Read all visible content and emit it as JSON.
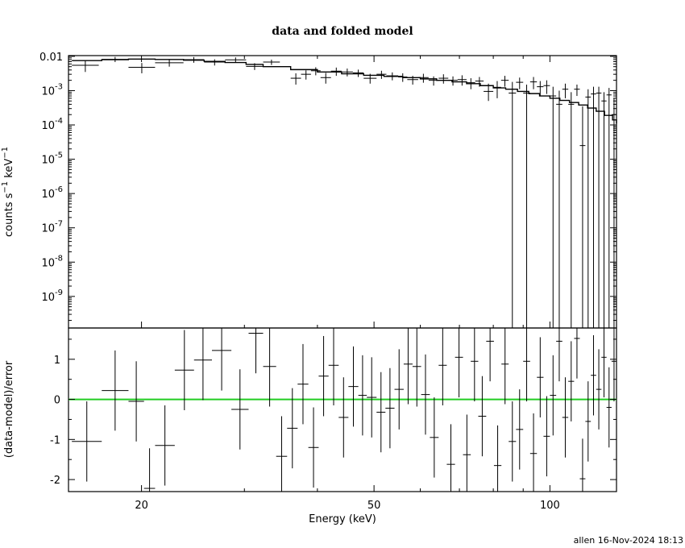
{
  "chart_data": {
    "type": "scatter",
    "title": "data and folded model",
    "xlabel": "Energy (keV)",
    "xscale": "log",
    "xlim": [
      15,
      130
    ],
    "xticks": [
      {
        "value": 20,
        "label": "20"
      },
      {
        "value": 50,
        "label": "50"
      },
      {
        "value": 100,
        "label": "100"
      }
    ],
    "footer": "allen 16-Nov-2024 18:13",
    "top": {
      "ylabel": "counts s-1 keV-1",
      "yscale": "log",
      "ylim": [
        1.2e-10,
        0.0105
      ],
      "yticks": [
        {
          "value": 0.01,
          "label": "0.01"
        },
        {
          "value": 0.001,
          "mant": "10",
          "exp": "-3"
        },
        {
          "value": 0.0001,
          "mant": "10",
          "exp": "-4"
        },
        {
          "value": 1e-05,
          "mant": "10",
          "exp": "-5"
        },
        {
          "value": 1e-06,
          "mant": "10",
          "exp": "-6"
        },
        {
          "value": 1e-07,
          "mant": "10",
          "exp": "-7"
        },
        {
          "value": 1e-08,
          "mant": "10",
          "exp": "-8"
        },
        {
          "value": 1e-09,
          "mant": "10",
          "exp": "-9"
        }
      ],
      "data": [
        [
          15.2,
          16.9,
          0.0055,
          0.0035,
          0.0075
        ],
        [
          17.1,
          19.0,
          0.0082,
          0.0068,
          0.0096
        ],
        [
          19.0,
          21.1,
          0.0048,
          0.0032,
          0.0064
        ],
        [
          21.1,
          23.6,
          0.0065,
          0.005,
          0.008
        ],
        [
          23.6,
          25.6,
          0.008,
          0.0065,
          0.0095
        ],
        [
          25.6,
          27.8,
          0.0068,
          0.0054,
          0.0082
        ],
        [
          27.8,
          30.2,
          0.0079,
          0.0065,
          0.0093
        ],
        [
          30.2,
          32.3,
          0.0051,
          0.004,
          0.0063
        ],
        [
          32.3,
          34.5,
          0.0068,
          0.0056,
          0.008
        ],
        [
          36.0,
          37.5,
          0.0023,
          0.0015,
          0.0032
        ],
        [
          37.5,
          39.0,
          0.003,
          0.0021,
          0.0039
        ],
        [
          39.0,
          40.5,
          0.0038,
          0.0028,
          0.0048
        ],
        [
          40.5,
          42.2,
          0.0024,
          0.0016,
          0.0033
        ],
        [
          42.2,
          44.0,
          0.0037,
          0.0027,
          0.0047
        ],
        [
          44.0,
          46.0,
          0.0035,
          0.0026,
          0.0044
        ],
        [
          46.0,
          48.0,
          0.0033,
          0.0025,
          0.0041
        ],
        [
          48.0,
          50.5,
          0.0023,
          0.0016,
          0.0031
        ],
        [
          50.5,
          52.5,
          0.003,
          0.0022,
          0.0038
        ],
        [
          52.5,
          55.0,
          0.0027,
          0.002,
          0.0034
        ],
        [
          55.0,
          57.0,
          0.0025,
          0.0018,
          0.0032
        ],
        [
          57.0,
          59.5,
          0.0021,
          0.0015,
          0.0027
        ],
        [
          59.5,
          62.0,
          0.0024,
          0.0017,
          0.0031
        ],
        [
          62.0,
          64.5,
          0.002,
          0.0014,
          0.0026
        ],
        [
          64.5,
          67.0,
          0.0023,
          0.0016,
          0.003
        ],
        [
          67.0,
          69.5,
          0.002,
          0.0014,
          0.0026
        ],
        [
          69.5,
          72.0,
          0.0021,
          0.0014,
          0.0028
        ],
        [
          72.0,
          74.5,
          0.0017,
          0.0011,
          0.0023
        ],
        [
          74.5,
          77.0,
          0.0019,
          0.0013,
          0.0025
        ],
        [
          77.0,
          80.0,
          0.00095,
          0.0005,
          0.0016
        ],
        [
          80.0,
          82.5,
          0.00125,
          0.0006,
          0.0019
        ],
        [
          82.5,
          85.0,
          0.002,
          0.0013,
          0.0027
        ],
        [
          85.0,
          87.5,
          0.00085,
          1e-12,
          0.0018
        ],
        [
          87.5,
          90.0,
          0.00175,
          0.0011,
          0.0024
        ],
        [
          90.0,
          92.5,
          0.00085,
          1e-12,
          0.0015
        ],
        [
          92.5,
          95.0,
          0.0018,
          0.0011,
          0.0025
        ],
        [
          95.0,
          97.5,
          0.0013,
          0.0007,
          0.0019
        ],
        [
          97.5,
          100.0,
          0.0014,
          0.0008,
          0.002
        ],
        [
          100.0,
          102.5,
          0.0007,
          1e-12,
          0.0013
        ],
        [
          102.5,
          105.0,
          0.0004,
          1e-12,
          0.001
        ],
        [
          105.0,
          107.5,
          0.0011,
          0.0006,
          0.0016
        ],
        [
          107.5,
          110.0,
          0.0004,
          1e-12,
          0.0009
        ],
        [
          110.0,
          112.5,
          0.0011,
          0.0007,
          0.0015
        ],
        [
          112.5,
          115.0,
          2.5e-05,
          1e-12,
          0.00035
        ],
        [
          115.0,
          117.5,
          0.00065,
          1e-12,
          0.0011
        ],
        [
          117.5,
          120.0,
          0.0008,
          1e-12,
          0.0013
        ],
        [
          120.0,
          122.5,
          0.00085,
          1e-12,
          0.0013
        ],
        [
          122.5,
          125.0,
          0.0005,
          1e-12,
          0.0009
        ],
        [
          125.0,
          127.5,
          0.00075,
          1e-12,
          0.0012
        ],
        [
          127.5,
          130.0,
          0.0002,
          1e-12,
          0.0006
        ]
      ],
      "model": [
        [
          15.2,
          0.0075
        ],
        [
          17.1,
          0.008
        ],
        [
          19.0,
          0.0083
        ],
        [
          21.1,
          0.0081
        ],
        [
          23.6,
          0.0077
        ],
        [
          25.6,
          0.0071
        ],
        [
          27.8,
          0.0066
        ],
        [
          30.2,
          0.0058
        ],
        [
          32.3,
          0.005
        ],
        [
          36.0,
          0.0041
        ],
        [
          40.0,
          0.0035
        ],
        [
          44.0,
          0.0031
        ],
        [
          48.0,
          0.0028
        ],
        [
          52.0,
          0.0026
        ],
        [
          56.0,
          0.0024
        ],
        [
          60.0,
          0.0022
        ],
        [
          64.0,
          0.002
        ],
        [
          68.0,
          0.0018
        ],
        [
          72.0,
          0.0016
        ],
        [
          76.0,
          0.0014
        ],
        [
          80.0,
          0.0012
        ],
        [
          84.0,
          0.0011
        ],
        [
          88.0,
          0.00095
        ],
        [
          92.0,
          0.00082
        ],
        [
          96.0,
          0.0007
        ],
        [
          100.0,
          0.0006
        ],
        [
          104.0,
          0.00052
        ],
        [
          108.0,
          0.00045
        ],
        [
          112.0,
          0.00038
        ],
        [
          116.0,
          0.00031
        ],
        [
          120.0,
          0.00025
        ],
        [
          124.0,
          0.00019
        ],
        [
          128.0,
          0.00014
        ],
        [
          130.0,
          0.00011
        ]
      ]
    },
    "bottom": {
      "ylabel": "(data-model)/error",
      "ylim": [
        -2.3,
        1.78
      ],
      "yticks": [
        {
          "value": 1,
          "label": "1"
        },
        {
          "value": 0,
          "label": "0"
        },
        {
          "value": -1,
          "label": "-1"
        },
        {
          "value": -2,
          "label": "-2"
        }
      ],
      "zero_line_color": "#22cc22",
      "data": [
        [
          15.2,
          17.1,
          -1.05,
          -2.05,
          -0.05
        ],
        [
          17.1,
          19.0,
          0.22,
          -0.78,
          1.22
        ],
        [
          19.0,
          20.2,
          -0.05,
          -1.05,
          0.95
        ],
        [
          20.2,
          21.1,
          -2.22,
          -3.22,
          -1.22
        ],
        [
          21.1,
          22.8,
          -1.15,
          -2.15,
          -0.15
        ],
        [
          22.8,
          24.6,
          0.73,
          -0.27,
          1.73
        ],
        [
          24.6,
          26.4,
          0.98,
          -0.02,
          1.98
        ],
        [
          26.4,
          28.5,
          1.22,
          0.22,
          2.22
        ],
        [
          28.5,
          30.5,
          -0.25,
          -1.25,
          0.75
        ],
        [
          30.5,
          32.3,
          1.65,
          0.65,
          2.65
        ],
        [
          32.3,
          34.0,
          0.82,
          -0.18,
          1.82
        ],
        [
          34.0,
          35.5,
          -1.42,
          -2.42,
          -0.42
        ],
        [
          35.5,
          37.0,
          -0.72,
          -1.72,
          0.28
        ],
        [
          37.0,
          38.6,
          0.38,
          -0.62,
          1.38
        ],
        [
          38.6,
          40.2,
          -1.2,
          -2.2,
          -0.2
        ],
        [
          40.2,
          41.8,
          0.58,
          -0.42,
          1.58
        ],
        [
          41.8,
          43.5,
          0.85,
          -0.15,
          1.85
        ],
        [
          43.5,
          45.2,
          -0.45,
          -1.45,
          0.55
        ],
        [
          45.2,
          47.0,
          0.32,
          -0.68,
          1.32
        ],
        [
          47.0,
          48.6,
          0.1,
          -0.9,
          1.1
        ],
        [
          48.6,
          50.5,
          0.05,
          -0.95,
          1.05
        ],
        [
          50.5,
          52.3,
          -0.32,
          -1.32,
          0.68
        ],
        [
          52.3,
          54.2,
          -0.22,
          -1.22,
          0.78
        ],
        [
          54.2,
          56.2,
          0.25,
          -0.75,
          1.25
        ],
        [
          56.2,
          58.2,
          0.88,
          -0.12,
          1.88
        ],
        [
          58.2,
          60.2,
          0.82,
          -0.18,
          1.82
        ],
        [
          60.2,
          62.3,
          0.12,
          -0.88,
          1.12
        ],
        [
          62.3,
          64.5,
          -0.95,
          -1.95,
          0.05
        ],
        [
          64.5,
          66.6,
          0.85,
          -0.15,
          1.85
        ],
        [
          66.6,
          68.8,
          -1.62,
          -2.62,
          -0.62
        ],
        [
          68.8,
          71.0,
          1.05,
          0.05,
          2.05
        ],
        [
          71.0,
          73.2,
          -1.38,
          -2.38,
          -0.38
        ],
        [
          73.2,
          75.4,
          0.95,
          -0.05,
          1.95
        ],
        [
          75.4,
          77.8,
          -0.42,
          -1.42,
          0.58
        ],
        [
          77.8,
          80.2,
          1.45,
          0.45,
          2.45
        ],
        [
          80.2,
          82.6,
          -1.65,
          -2.65,
          -0.65
        ],
        [
          82.6,
          85.0,
          0.88,
          -0.12,
          1.88
        ],
        [
          85.0,
          87.5,
          -1.05,
          -2.05,
          -0.05
        ],
        [
          87.5,
          90.0,
          -0.75,
          -1.75,
          0.25
        ],
        [
          90.0,
          92.5,
          0.95,
          -0.05,
          1.95
        ],
        [
          92.5,
          95.0,
          -1.35,
          -2.35,
          -0.35
        ],
        [
          95.0,
          97.5,
          0.55,
          -0.45,
          1.55
        ],
        [
          97.5,
          100.0,
          -0.92,
          -1.92,
          0.08
        ],
        [
          100.0,
          102.5,
          0.1,
          -0.9,
          1.1
        ],
        [
          102.5,
          105.0,
          1.45,
          0.45,
          2.45
        ],
        [
          105.0,
          107.5,
          -0.45,
          -1.45,
          0.55
        ],
        [
          107.5,
          110.0,
          0.45,
          -0.55,
          1.45
        ],
        [
          110.0,
          112.5,
          1.52,
          0.52,
          2.52
        ],
        [
          112.5,
          115.0,
          -1.98,
          -2.98,
          -0.98
        ],
        [
          115.0,
          117.5,
          -0.55,
          -1.55,
          0.45
        ],
        [
          117.5,
          120.0,
          0.6,
          -0.4,
          1.6
        ],
        [
          120.0,
          122.5,
          0.25,
          -0.75,
          1.25
        ],
        [
          122.5,
          125.0,
          1.05,
          0.05,
          2.05
        ],
        [
          125.0,
          127.5,
          -0.2,
          -1.2,
          0.8
        ],
        [
          127.5,
          130.0,
          0.95,
          -0.05,
          1.95
        ]
      ]
    }
  }
}
